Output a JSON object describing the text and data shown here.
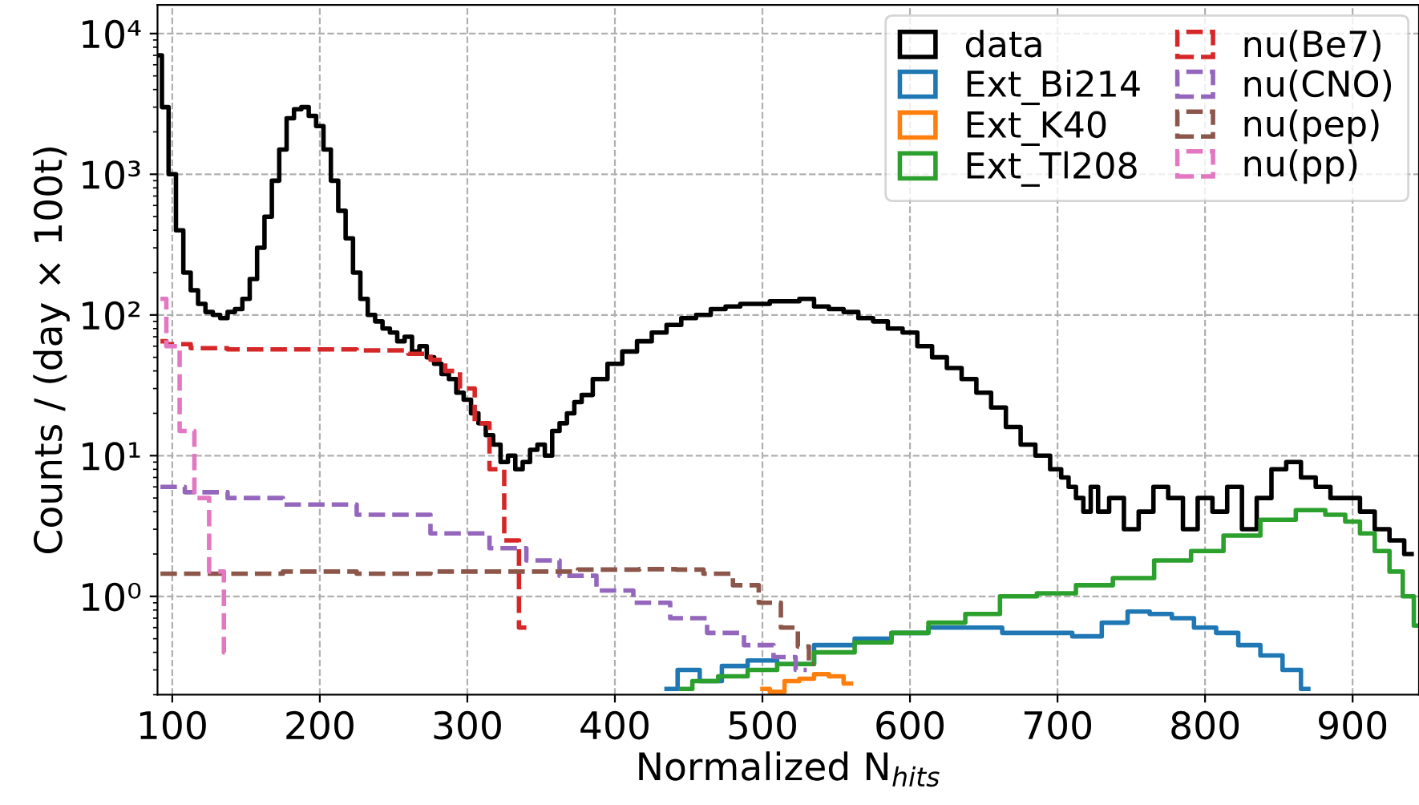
{
  "chart_data": {
    "type": "step",
    "xlabel": "Normalized N$_{hits}$",
    "ylabel": "Counts / (day × 100t)",
    "log": "y",
    "grid": true,
    "legend": "top right",
    "xlim": [
      90,
      945
    ],
    "xticks": [
      100,
      200,
      300,
      400,
      500,
      600,
      700,
      800,
      900
    ],
    "ylim": [
      0.2,
      16000
    ],
    "yticks": [
      {
        "value": 1,
        "label": "10⁰"
      },
      {
        "value": 10,
        "label": "10¹"
      },
      {
        "value": 100,
        "label": "10²"
      },
      {
        "value": 1000,
        "label": "10³"
      },
      {
        "value": 10000,
        "label": "10⁴"
      }
    ],
    "series": [
      {
        "name": "data",
        "color": "#000000",
        "line_style": "solid",
        "x": [
          91,
          95,
          100,
          105,
          110,
          115,
          120,
          125,
          130,
          135,
          140,
          145,
          150,
          155,
          160,
          165,
          170,
          175,
          180,
          185,
          190,
          195,
          200,
          205,
          210,
          215,
          220,
          225,
          230,
          235,
          240,
          245,
          250,
          255,
          260,
          265,
          270,
          275,
          280,
          285,
          290,
          295,
          300,
          305,
          310,
          315,
          320,
          325,
          330,
          335,
          340,
          345,
          350,
          355,
          360,
          365,
          370,
          375,
          380,
          390,
          400,
          410,
          420,
          430,
          440,
          450,
          460,
          470,
          480,
          490,
          500,
          510,
          520,
          530,
          540,
          550,
          560,
          570,
          580,
          590,
          600,
          610,
          620,
          630,
          640,
          650,
          660,
          670,
          680,
          690,
          700,
          705,
          710,
          715,
          720,
          725,
          730,
          740,
          750,
          760,
          770,
          780,
          790,
          800,
          810,
          820,
          830,
          840,
          850,
          860,
          870,
          880,
          890,
          900,
          910,
          920,
          930,
          940
        ],
        "values": [
          7000,
          3000,
          1000,
          400,
          200,
          150,
          120,
          105,
          100,
          95,
          105,
          110,
          130,
          180,
          300,
          500,
          900,
          1500,
          2500,
          2900,
          3000,
          2600,
          2200,
          1500,
          900,
          550,
          350,
          200,
          130,
          100,
          90,
          80,
          75,
          65,
          70,
          55,
          60,
          50,
          45,
          38,
          35,
          28,
          25,
          20,
          17,
          14,
          12,
          9,
          10,
          8,
          9,
          11,
          12,
          10,
          15,
          17,
          20,
          24,
          27,
          35,
          45,
          55,
          65,
          75,
          85,
          95,
          100,
          110,
          115,
          120,
          120,
          125,
          125,
          130,
          115,
          110,
          105,
          95,
          90,
          80,
          75,
          60,
          50,
          42,
          35,
          28,
          22,
          16,
          12,
          10,
          8,
          7,
          6,
          5,
          4,
          6,
          4,
          5,
          3,
          4,
          6,
          5,
          3,
          5,
          4,
          6,
          3,
          5,
          8,
          9,
          7,
          6,
          5,
          5,
          4,
          3,
          2.5,
          2
        ]
      },
      {
        "name": "Ext_Bi214",
        "color": "#1f77b4",
        "line_style": "solid",
        "x": [
          435,
          450,
          465,
          480,
          500,
          520,
          550,
          575,
          600,
          625,
          650,
          675,
          700,
          720,
          740,
          755,
          770,
          785,
          800,
          815,
          830,
          845,
          860,
          870
        ],
        "values": [
          0.22,
          0.3,
          0.25,
          0.32,
          0.35,
          0.33,
          0.45,
          0.5,
          0.55,
          0.6,
          0.6,
          0.55,
          0.55,
          0.52,
          0.65,
          0.78,
          0.75,
          0.7,
          0.6,
          0.55,
          0.45,
          0.38,
          0.3,
          0.22
        ]
      },
      {
        "name": "Ext_K40",
        "color": "#ff7f0e",
        "line_style": "solid",
        "x": [
          500,
          510,
          520,
          530,
          540,
          550,
          560
        ],
        "values": [
          0.22,
          0.21,
          0.25,
          0.26,
          0.28,
          0.27,
          0.24
        ]
      },
      {
        "name": "Ext_Tl208",
        "color": "#2ca02c",
        "line_style": "solid",
        "x": [
          445,
          460,
          480,
          500,
          520,
          550,
          575,
          600,
          625,
          650,
          672,
          700,
          725,
          750,
          781,
          800,
          825,
          850,
          873,
          890,
          900,
          910,
          920,
          930,
          938,
          945
        ],
        "values": [
          0.22,
          0.25,
          0.27,
          0.3,
          0.33,
          0.4,
          0.47,
          0.55,
          0.65,
          0.75,
          1.0,
          1.05,
          1.2,
          1.35,
          1.8,
          2.1,
          2.7,
          3.5,
          4.1,
          3.8,
          3.4,
          2.8,
          2.1,
          1.5,
          1.0,
          0.62
        ]
      },
      {
        "name": "nu(Be7)",
        "color": "#d62728",
        "line_style": "dashed",
        "x": [
          92,
          100,
          125,
          150,
          200,
          250,
          270,
          280,
          290,
          300,
          310,
          320,
          330,
          340
        ],
        "values": [
          65,
          62,
          58,
          57,
          57,
          56,
          53,
          48,
          40,
          30,
          17,
          8,
          2.5,
          0.6
        ]
      },
      {
        "name": "nu(CNO)",
        "color": "#9467bd",
        "line_style": "dashed",
        "x": [
          92,
          125,
          150,
          200,
          250,
          300,
          330,
          350,
          375,
          400,
          425,
          450,
          475,
          500,
          515,
          530
        ],
        "values": [
          6,
          5.5,
          5,
          4.5,
          3.8,
          2.8,
          2.2,
          1.8,
          1.4,
          1.1,
          0.9,
          0.7,
          0.55,
          0.45,
          0.37,
          0.3
        ]
      },
      {
        "name": "nu(pep)",
        "color": "#8c564b",
        "line_style": "dashed",
        "x": [
          92,
          150,
          200,
          250,
          300,
          350,
          400,
          433,
          450,
          470,
          490,
          505,
          520,
          528,
          535
        ],
        "values": [
          1.45,
          1.45,
          1.5,
          1.45,
          1.5,
          1.5,
          1.55,
          1.56,
          1.55,
          1.45,
          1.2,
          0.9,
          0.6,
          0.44,
          0.33
        ]
      },
      {
        "name": "nu(pp)",
        "color": "#e377c2",
        "line_style": "dashed",
        "x": [
          92,
          100,
          110,
          120,
          130,
          140
        ],
        "values": [
          130,
          60,
          15,
          5,
          1.5,
          0.4
        ]
      }
    ]
  }
}
